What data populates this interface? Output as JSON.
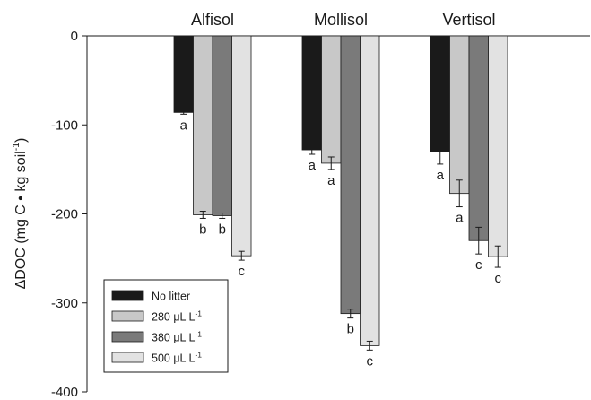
{
  "chart_data": {
    "type": "bar",
    "categories": [
      "Alfisol",
      "Mollisol",
      "Vertisol"
    ],
    "ylabel_parts": {
      "main": "ΔDOC (mg C • kg soil",
      "sup": "-1",
      "close": ")"
    },
    "ylim": [
      -400,
      0
    ],
    "yticks": [
      0,
      -100,
      -200,
      -300,
      -400
    ],
    "ytick_labels": [
      "0",
      "-100",
      "-200",
      "-300",
      "-400"
    ],
    "grid": false,
    "legend_position": "bottom-left",
    "series": [
      {
        "legend_main": "No litter",
        "legend_unit": "",
        "legend_sup": "",
        "color": "#1a1a1a",
        "values": [
          -86,
          -128,
          -130
        ],
        "errors": [
          2,
          5,
          14
        ],
        "letters": [
          "a",
          "a",
          "a"
        ]
      },
      {
        "legend_main": "280",
        "legend_unit": "μL L",
        "legend_sup": "-1",
        "color": "#c8c8c8",
        "values": [
          -201,
          -143,
          -177
        ],
        "errors": [
          4,
          7,
          15
        ],
        "letters": [
          "b",
          "a",
          "a"
        ]
      },
      {
        "legend_main": "380",
        "legend_unit": "μL L",
        "legend_sup": "-1",
        "color": "#7a7a7a",
        "values": [
          -202,
          -312,
          -230
        ],
        "errors": [
          3,
          5,
          15
        ],
        "letters": [
          "b",
          "b",
          "c"
        ]
      },
      {
        "legend_main": "500",
        "legend_unit": "μL L",
        "legend_sup": "-1",
        "color": "#e2e2e2",
        "values": [
          -247,
          -348,
          -248
        ],
        "errors": [
          5,
          5,
          12
        ],
        "letters": [
          "c",
          "c",
          "c"
        ]
      }
    ]
  }
}
